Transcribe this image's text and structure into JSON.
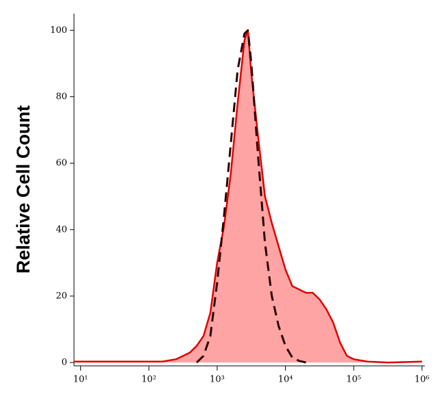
{
  "chart_data": {
    "type": "histogram-overlay",
    "y_label": "Relative Cell Count",
    "xscale": "log",
    "x": [
      8,
      100,
      158,
      251,
      398,
      501,
      631,
      794,
      1000,
      1259,
      1585,
      1995,
      2512,
      2818,
      3162,
      3981,
      5012,
      6310,
      7943,
      10000,
      12589,
      15849,
      19953,
      25119,
      31623,
      39811,
      50119,
      63096,
      79433,
      100000,
      158489,
      316228,
      1000000
    ],
    "series": [
      {
        "color": "#e00000",
        "fill": "#ff9a9a",
        "dash": false,
        "values": [
          0.3,
          0.3,
          0.3,
          1,
          3,
          5,
          8,
          15,
          30,
          41,
          57,
          78,
          97,
          100,
          87,
          68,
          50,
          42,
          35,
          28,
          23,
          22,
          21,
          21,
          19,
          16,
          12,
          6,
          2,
          1,
          0.3,
          0,
          0.3
        ]
      },
      {
        "color": "#2a0000",
        "dash": true,
        "values": [
          null,
          null,
          null,
          null,
          null,
          0,
          2,
          8,
          24,
          44,
          66,
          88,
          99,
          100,
          90,
          62,
          36,
          20,
          11,
          5,
          1.5,
          0.5,
          0,
          null,
          null,
          null,
          null,
          null,
          null,
          null,
          null,
          null,
          null
        ]
      }
    ],
    "xlim": [
      8,
      1100000
    ],
    "xticks": [
      {
        "value": 10,
        "label": "10¹"
      },
      {
        "value": 100,
        "label": "10²"
      },
      {
        "value": 1000,
        "label": "10³"
      },
      {
        "value": 10000,
        "label": "10⁴"
      },
      {
        "value": 100000,
        "label": "10⁵"
      },
      {
        "value": 1000000,
        "label": "10⁶"
      }
    ],
    "ylim": [
      -1,
      105
    ],
    "yticks": [
      0,
      20,
      40,
      60,
      80,
      100
    ]
  }
}
